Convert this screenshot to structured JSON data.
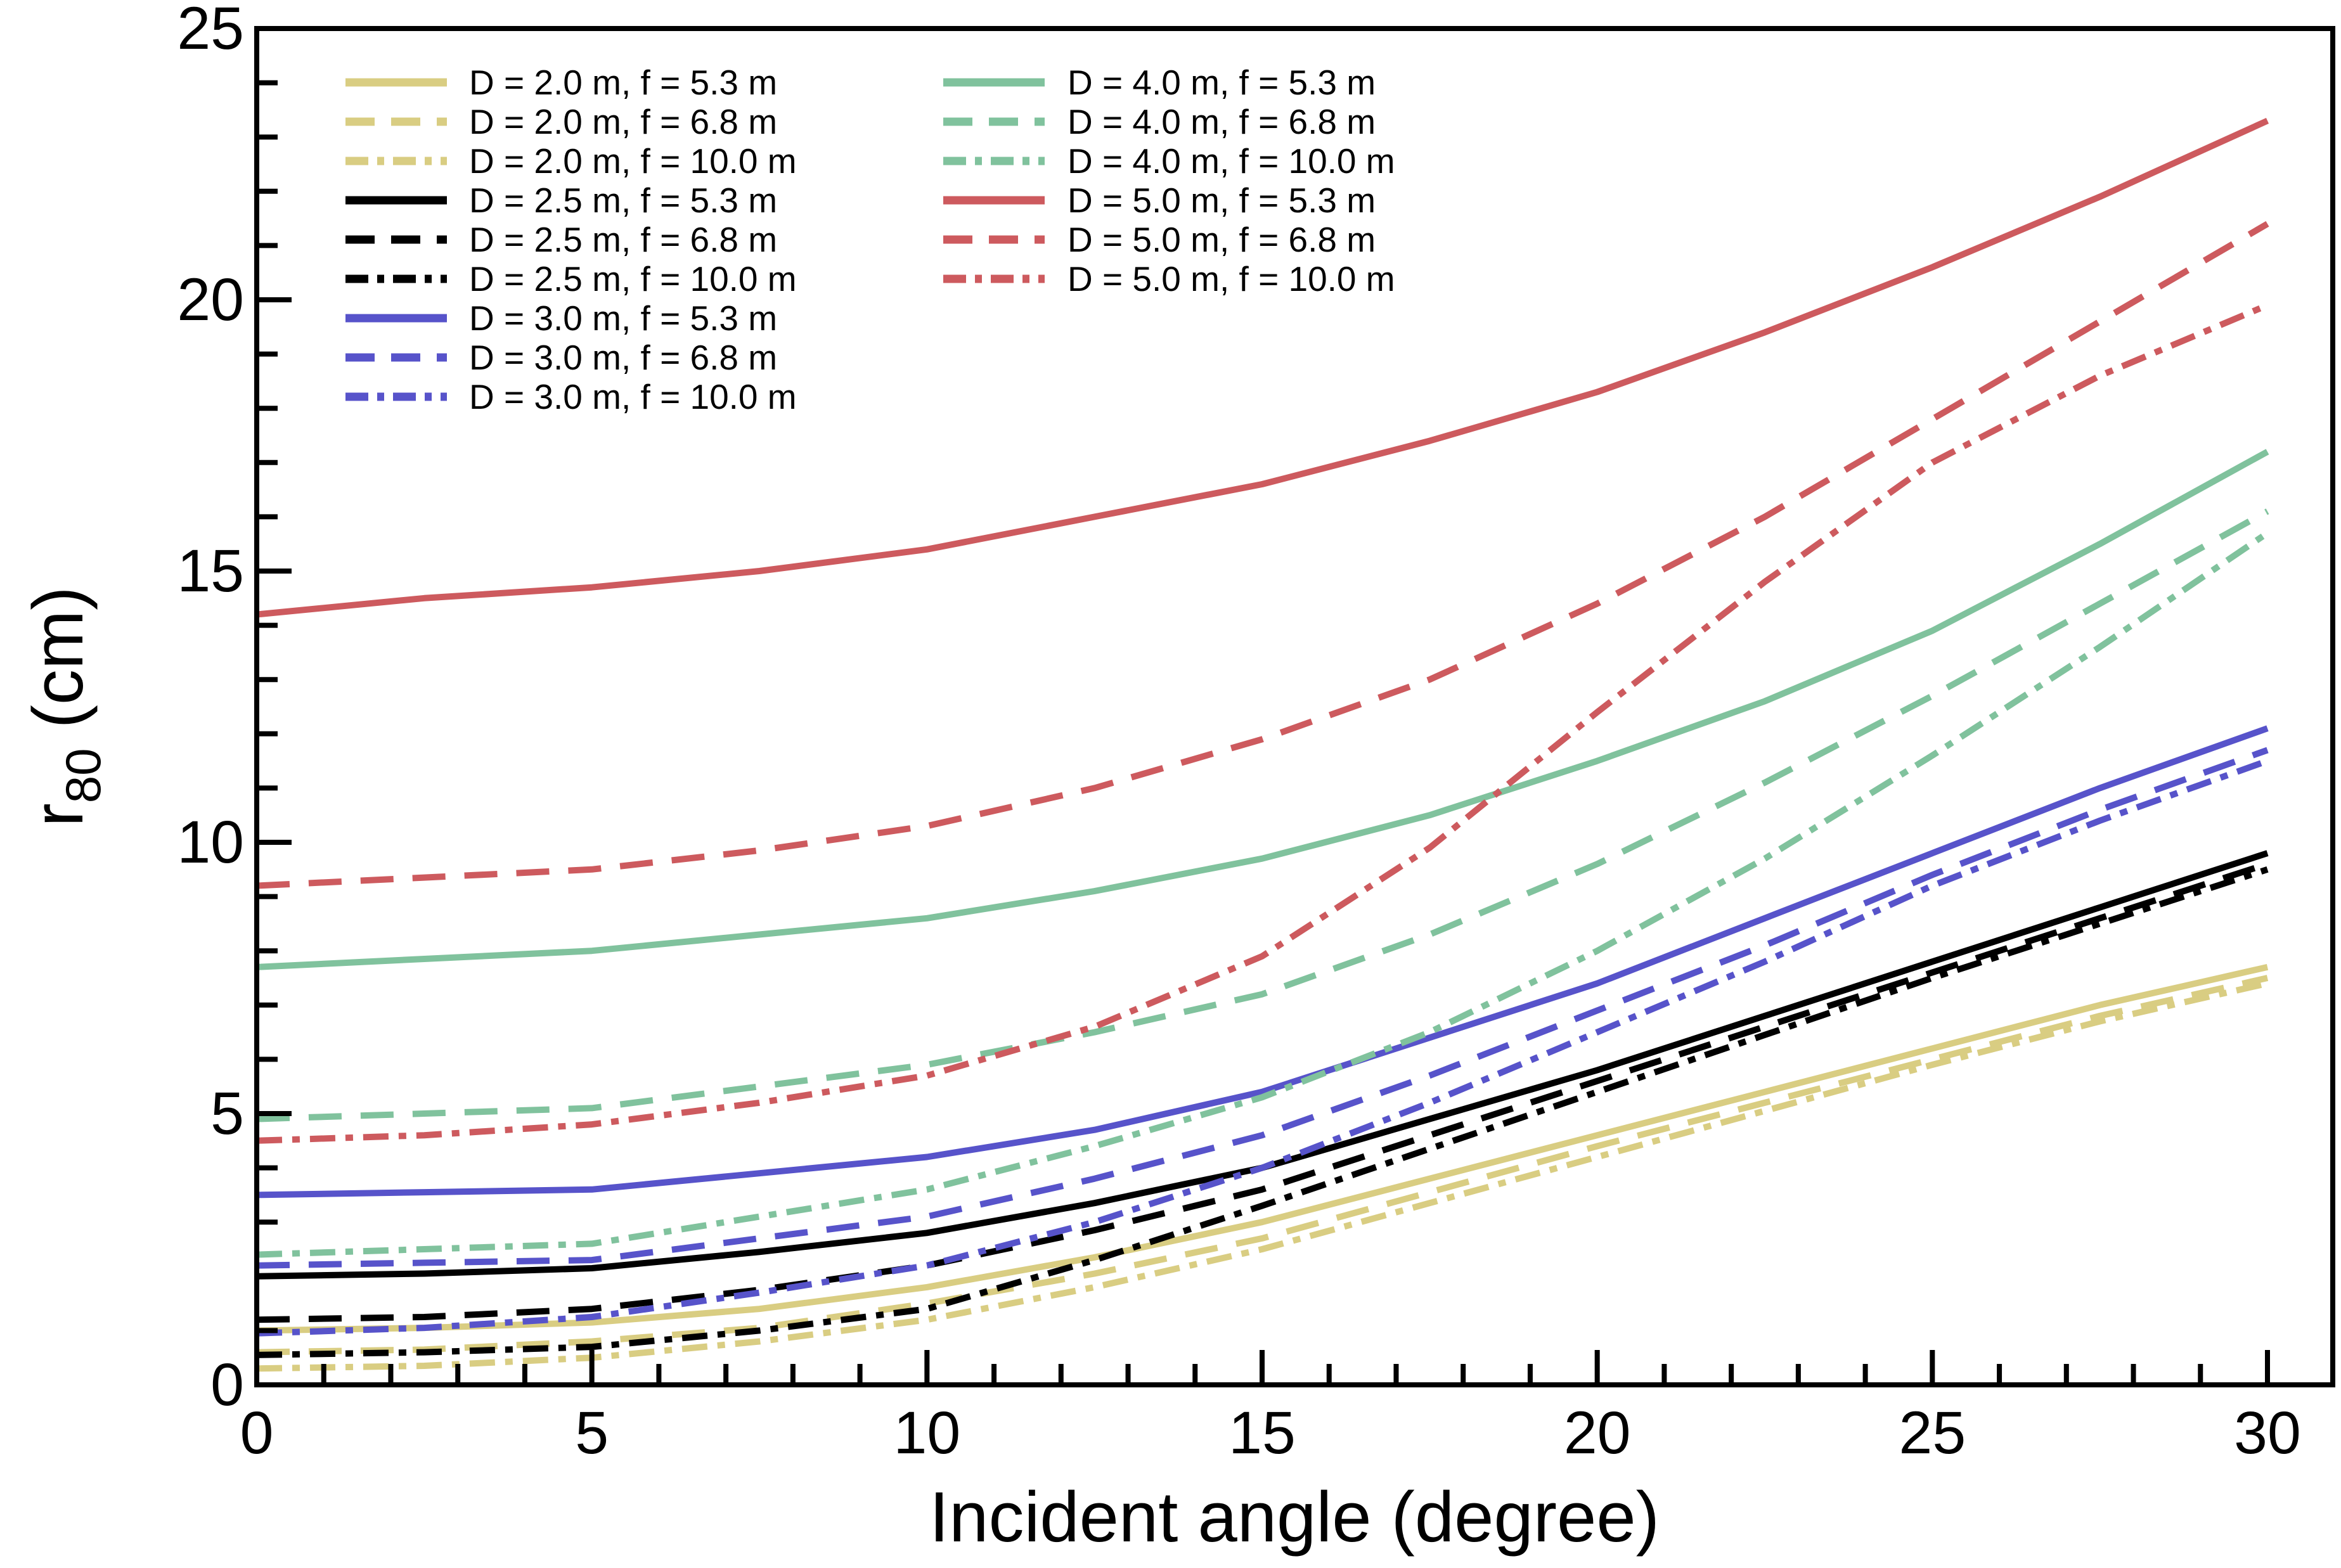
{
  "figure": {
    "xlabel": "Incident angle (degree)",
    "ylabel_base": "r",
    "ylabel_sub": "80",
    "ylabel_unit": " (cm)"
  },
  "chart_data": {
    "type": "line",
    "title": "",
    "xlabel": "Incident angle (degree)",
    "ylabel": "r_80 (cm)",
    "xlim": [
      0,
      31
    ],
    "ylim": [
      0,
      25
    ],
    "x_major_ticks": [
      0,
      5,
      10,
      15,
      20,
      25,
      30
    ],
    "y_major_ticks": [
      0,
      5,
      10,
      15,
      20,
      25
    ],
    "minor_tick_step": 1,
    "grid": false,
    "legend_position": "top-left, two columns",
    "colors": {
      "D2.0": "#d9cd82",
      "D2.5": "#000000",
      "D3.0": "#5753ca",
      "D4.0": "#80c29d",
      "D5.0": "#cd5a5e"
    },
    "x": [
      0,
      2.5,
      5,
      7.5,
      10,
      12.5,
      15,
      17.5,
      20,
      22.5,
      25,
      27.5,
      30
    ],
    "series": [
      {
        "name": "D2.0-f5.3",
        "label": "D = 2.0 m, f = 5.3 m",
        "color": "#d9cd82",
        "style": "solid",
        "values": [
          1.0,
          1.05,
          1.15,
          1.4,
          1.8,
          2.35,
          3.0,
          3.8,
          4.6,
          5.4,
          6.2,
          7.0,
          7.7
        ]
      },
      {
        "name": "D2.0-f6.8",
        "label": "D = 2.0 m, f = 6.8 m",
        "color": "#d9cd82",
        "style": "dashed",
        "values": [
          0.6,
          0.65,
          0.8,
          1.05,
          1.5,
          2.05,
          2.7,
          3.55,
          4.4,
          5.2,
          6.0,
          6.8,
          7.5
        ]
      },
      {
        "name": "D2.0-f10.0",
        "label": "D = 2.0 m, f = 10.0 m",
        "color": "#d9cd82",
        "style": "dashdot",
        "values": [
          0.3,
          0.35,
          0.5,
          0.8,
          1.2,
          1.8,
          2.5,
          3.35,
          4.2,
          5.05,
          5.9,
          6.7,
          7.4
        ]
      },
      {
        "name": "D2.5-f5.3",
        "label": "D = 2.5 m, f = 5.3 m",
        "color": "#000000",
        "style": "solid",
        "values": [
          2.0,
          2.05,
          2.15,
          2.45,
          2.8,
          3.35,
          4.0,
          4.9,
          5.8,
          6.8,
          7.8,
          8.8,
          9.8
        ]
      },
      {
        "name": "D2.5-f6.8",
        "label": "D = 2.5 m, f = 6.8 m",
        "color": "#000000",
        "style": "dashed",
        "values": [
          1.2,
          1.25,
          1.4,
          1.75,
          2.2,
          2.85,
          3.6,
          4.6,
          5.6,
          6.6,
          7.6,
          8.6,
          9.6
        ]
      },
      {
        "name": "D2.5-f10.0",
        "label": "D = 2.5 m, f = 10.0 m",
        "color": "#000000",
        "style": "dashdot",
        "values": [
          0.55,
          0.6,
          0.7,
          1.0,
          1.4,
          2.3,
          3.3,
          4.35,
          5.4,
          6.45,
          7.5,
          8.5,
          9.5
        ]
      },
      {
        "name": "D3.0-f5.3",
        "label": "D = 3.0 m, f = 5.3 m",
        "color": "#5753ca",
        "style": "solid",
        "values": [
          3.5,
          3.55,
          3.6,
          3.9,
          4.2,
          4.7,
          5.4,
          6.4,
          7.4,
          8.6,
          9.8,
          11.0,
          12.1
        ]
      },
      {
        "name": "D3.0-f6.8",
        "label": "D = 3.0 m, f = 6.8 m",
        "color": "#5753ca",
        "style": "dashed",
        "values": [
          2.2,
          2.25,
          2.3,
          2.7,
          3.1,
          3.8,
          4.6,
          5.7,
          6.9,
          8.1,
          9.4,
          10.6,
          11.7
        ]
      },
      {
        "name": "D3.0-f10.0",
        "label": "D = 3.0 m, f = 10.0 m",
        "color": "#5753ca",
        "style": "dashdot",
        "values": [
          0.95,
          1.05,
          1.25,
          1.7,
          2.2,
          3.0,
          4.0,
          5.2,
          6.5,
          7.8,
          9.2,
          10.4,
          11.5
        ]
      },
      {
        "name": "D4.0-f5.3",
        "label": "D = 4.0 m, f = 5.3 m",
        "color": "#80c29d",
        "style": "solid",
        "values": [
          7.7,
          7.85,
          8.0,
          8.3,
          8.6,
          9.1,
          9.7,
          10.5,
          11.5,
          12.6,
          13.9,
          15.5,
          17.2
        ]
      },
      {
        "name": "D4.0-f6.8",
        "label": "D = 4.0 m, f = 6.8 m",
        "color": "#80c29d",
        "style": "dashed",
        "values": [
          4.9,
          5.0,
          5.1,
          5.5,
          5.9,
          6.5,
          7.2,
          8.3,
          9.6,
          11.1,
          12.7,
          14.4,
          16.1
        ]
      },
      {
        "name": "D4.0-f10.0",
        "label": "D = 4.0 m, f = 10.0 m",
        "color": "#80c29d",
        "style": "dashdot",
        "values": [
          2.4,
          2.5,
          2.6,
          3.1,
          3.6,
          4.4,
          5.3,
          6.5,
          8.0,
          9.7,
          11.6,
          13.6,
          15.7
        ]
      },
      {
        "name": "D5.0-f5.3",
        "label": "D = 5.0 m, f = 5.3 m",
        "color": "#cd5a5e",
        "style": "solid",
        "values": [
          14.2,
          14.5,
          14.7,
          15.0,
          15.4,
          16.0,
          16.6,
          17.4,
          18.3,
          19.4,
          20.6,
          21.9,
          23.3
        ]
      },
      {
        "name": "D5.0-f6.8",
        "label": "D = 5.0 m, f = 6.8 m",
        "color": "#cd5a5e",
        "style": "dashed",
        "values": [
          9.2,
          9.35,
          9.5,
          9.85,
          10.3,
          11.0,
          11.9,
          13.0,
          14.4,
          16.0,
          17.8,
          19.6,
          21.4
        ]
      },
      {
        "name": "D5.0-f10.0",
        "label": "D = 5.0 m, f = 10.0 m",
        "color": "#cd5a5e",
        "style": "dashdot",
        "values": [
          4.5,
          4.6,
          4.8,
          5.2,
          5.7,
          6.6,
          7.9,
          9.9,
          12.4,
          14.8,
          17.0,
          18.6,
          19.9
        ]
      }
    ]
  }
}
